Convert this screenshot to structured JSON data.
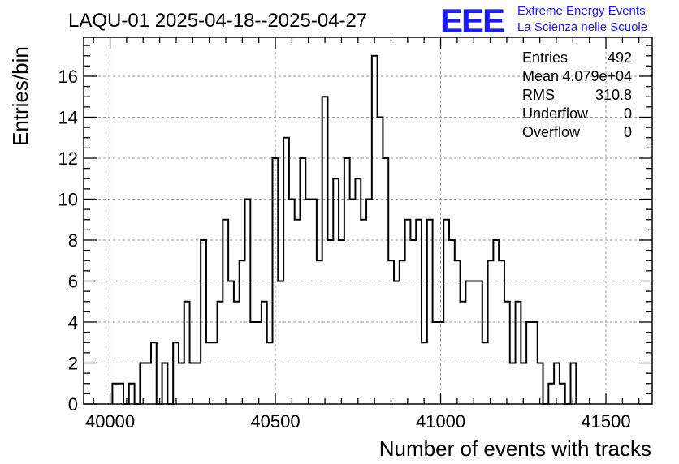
{
  "brand": {
    "logo_text": "EEE",
    "line1": "Extreme Energy Events",
    "line2": "La Scienza nelle Scuole",
    "logo_color": "#1a1aff",
    "text_color": "#1a1aff"
  },
  "stats": {
    "rows": [
      {
        "label": "Entries",
        "value": "492"
      },
      {
        "label": "Mean",
        "value": "4.079e+04"
      },
      {
        "label": "RMS",
        "value": "310.8"
      },
      {
        "label": "Underflow",
        "value": "0"
      },
      {
        "label": "Overflow",
        "value": "0"
      }
    ]
  },
  "chart_data": {
    "type": "histogram",
    "title": "LAQU-01 2025-04-18--2025-04-27",
    "xlabel": "Number of events with tracks",
    "ylabel": "Entries/bin",
    "xlim": [
      39920,
      41640
    ],
    "ylim": [
      0,
      17.9
    ],
    "x_ticks": [
      40000,
      40500,
      41000,
      41500
    ],
    "y_ticks": [
      0,
      2,
      4,
      6,
      8,
      10,
      12,
      14,
      16
    ],
    "grid": true,
    "line_color": "#000000",
    "x_start": 40007,
    "bin_width": 16.7,
    "counts": [
      1,
      1,
      0,
      1,
      0,
      2,
      2,
      3,
      0,
      2,
      0,
      3,
      2,
      5,
      2,
      2,
      8,
      3,
      3,
      5,
      9,
      6,
      5,
      7,
      10,
      4,
      4,
      5,
      3,
      12,
      6,
      13,
      10,
      9,
      12,
      10,
      10,
      7,
      15,
      8,
      11,
      8,
      12,
      10,
      11,
      9,
      10,
      17,
      14,
      12,
      7,
      6,
      7,
      9,
      8,
      9,
      3,
      9,
      4,
      4,
      9,
      8,
      7,
      5,
      6,
      6,
      6,
      3,
      7,
      8,
      7,
      5,
      2,
      5,
      2,
      4,
      4,
      2,
      0,
      1,
      2,
      1,
      0,
      2
    ]
  }
}
